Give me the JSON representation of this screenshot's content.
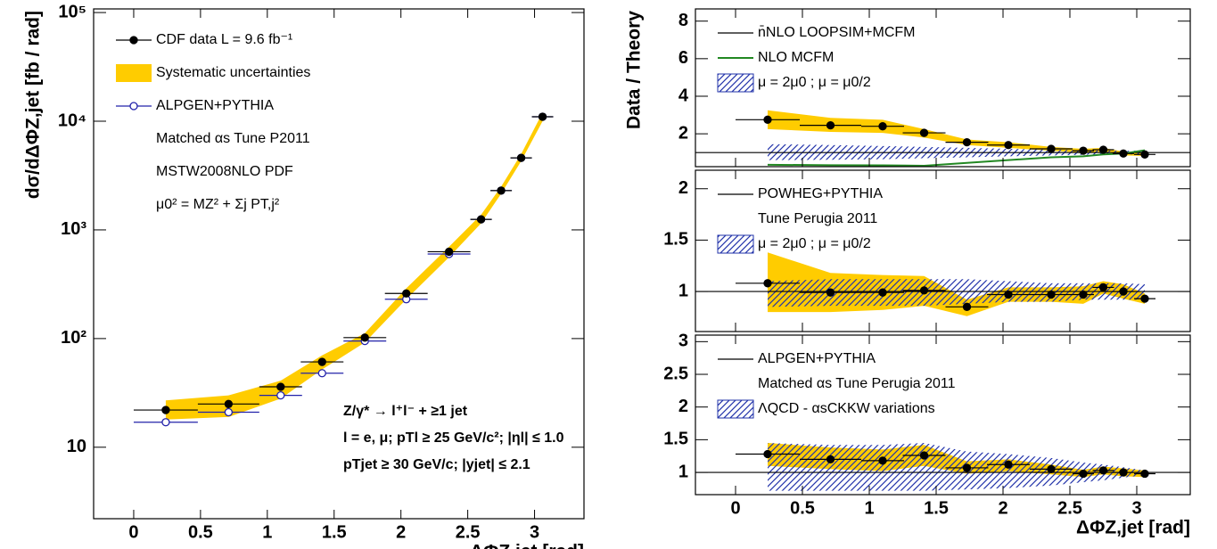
{
  "chart_data": [
    {
      "type": "errorbar",
      "log_y": true,
      "xlabel": "ΔΦZ,jet [rad]",
      "ylabel": "dσ/dΔΦZ,jet [fb / rad]",
      "xlim": [
        -0.3,
        3.37
      ],
      "ylim": [
        2.2,
        108000
      ],
      "xticks": [
        0,
        0.5,
        1,
        1.5,
        2,
        2.5,
        3
      ],
      "yticks": [
        10,
        {
          "value": 100,
          "label": "10²"
        },
        {
          "value": 1000,
          "label": "10³"
        },
        {
          "value": 10000,
          "label": "10⁴"
        },
        {
          "value": 100000,
          "label": "10⁵"
        }
      ],
      "x": [
        0.24,
        0.71,
        1.1,
        1.41,
        1.73,
        2.04,
        2.36,
        2.6,
        2.75,
        2.9,
        3.06
      ],
      "x_err": [
        0.24,
        0.23,
        0.16,
        0.16,
        0.16,
        0.16,
        0.16,
        0.08,
        0.08,
        0.08,
        0.08
      ],
      "series": [
        {
          "name": "CDF data  L =  9.6 fb⁻¹",
          "kind": "points",
          "color": "#000000",
          "values": [
            22,
            25,
            36,
            61,
            102,
            260,
            630,
            1250,
            2300,
            4600,
            11000
          ]
        },
        {
          "name": "Systematic uncertainties",
          "kind": "band",
          "color": "#ffcc00",
          "lower": [
            18,
            19,
            28,
            52,
            92,
            230,
            560,
            1150,
            2150,
            4300,
            10000
          ],
          "upper": [
            27,
            30,
            41,
            70,
            112,
            290,
            700,
            1380,
            2500,
            5000,
            12000
          ]
        },
        {
          "name": "ALPGEN+PYTHIA",
          "kind": "open_points",
          "color": "#2222aa",
          "values": [
            17,
            21,
            30,
            48,
            95,
            230,
            600,
            1250,
            2300,
            4600,
            11000
          ]
        }
      ],
      "notes": [
        "Matched αs Tune P2011",
        "MSTW2008NLO PDF",
        "μ0² = MZ² + Σj PT,j²"
      ],
      "annotations": [
        "Z/γ* → l⁺l⁻ + ≥1 jet",
        "l = e, μ;  pTl ≥ 25 GeV/c²; |ηl| ≤ 1.0",
        "pTjet ≥ 30 GeV/c; |yjet| ≤ 2.1"
      ]
    },
    {
      "type": "ratio",
      "ylabel": "Data / Theory",
      "xlim": [
        -0.3,
        3.4
      ],
      "ylim": [
        0.25,
        8.65
      ],
      "xticks": [
        0,
        0.5,
        1,
        1.5,
        2,
        2.5,
        3
      ],
      "yticks": [
        2,
        4,
        6,
        8
      ],
      "x": [
        0.24,
        0.71,
        1.1,
        1.41,
        1.73,
        2.04,
        2.36,
        2.6,
        2.75,
        2.9,
        3.06
      ],
      "x_err": [
        0.24,
        0.23,
        0.16,
        0.16,
        0.16,
        0.16,
        0.16,
        0.08,
        0.08,
        0.08,
        0.08
      ],
      "series": [
        {
          "name": "n̄NLO LOOPSIM+MCFM",
          "kind": "hline",
          "color": "#000000",
          "y": 1
        },
        {
          "name": "NLO MCFM",
          "kind": "line",
          "color": "#228822",
          "values": [
            0.35,
            0.33,
            0.32,
            0.3,
            0.45,
            0.6,
            0.75,
            0.8,
            0.9,
            0.95,
            1.12
          ]
        },
        {
          "name": "μ = 2μ0 ; μ = μ0/2",
          "kind": "hatch",
          "color": "#2233aa",
          "lower": [
            0.6,
            0.62,
            0.65,
            0.7,
            0.75,
            0.8,
            0.85,
            0.88,
            0.9,
            0.9,
            0.9
          ],
          "upper": [
            1.45,
            1.4,
            1.35,
            1.3,
            1.25,
            1.2,
            1.15,
            1.12,
            1.1,
            1.1,
            1.1
          ]
        },
        {
          "kind": "band",
          "color": "#ffcc00",
          "lower": [
            2.25,
            2.1,
            2.05,
            1.8,
            1.4,
            1.25,
            1.1,
            1.0,
            1.05,
            0.85,
            0.82
          ],
          "upper": [
            3.25,
            2.85,
            2.75,
            2.25,
            1.7,
            1.55,
            1.3,
            1.2,
            1.25,
            1.05,
            0.98
          ]
        },
        {
          "kind": "points",
          "color": "#000000",
          "values": [
            2.75,
            2.45,
            2.4,
            2.05,
            1.55,
            1.4,
            1.2,
            1.1,
            1.15,
            0.95,
            0.9
          ]
        }
      ]
    },
    {
      "type": "ratio",
      "xlim": [
        -0.3,
        3.4
      ],
      "ylim": [
        0.61,
        2.18
      ],
      "xticks": [
        0,
        0.5,
        1,
        1.5,
        2,
        2.5,
        3
      ],
      "yticks": [
        1,
        1.5,
        2
      ],
      "x": [
        0.24,
        0.71,
        1.1,
        1.41,
        1.73,
        2.04,
        2.36,
        2.6,
        2.75,
        2.9,
        3.06
      ],
      "x_err": [
        0.24,
        0.23,
        0.16,
        0.16,
        0.16,
        0.16,
        0.16,
        0.08,
        0.08,
        0.08,
        0.08
      ],
      "series": [
        {
          "name": "POWHEG+PYTHIA",
          "kind": "hline",
          "color": "#000000",
          "y": 1
        },
        {
          "name": "μ = 2μ0 ; μ = μ0/2",
          "kind": "hatch",
          "color": "#2233aa",
          "lower": [
            0.85,
            0.86,
            0.86,
            0.86,
            0.88,
            0.9,
            0.9,
            0.92,
            0.92,
            0.92,
            0.92
          ],
          "upper": [
            1.1,
            1.12,
            1.12,
            1.12,
            1.12,
            1.1,
            1.08,
            1.08,
            1.08,
            1.08,
            1.07
          ]
        },
        {
          "kind": "band",
          "color": "#ffcc00",
          "lower": [
            0.8,
            0.8,
            0.82,
            0.86,
            0.76,
            0.9,
            0.9,
            0.88,
            0.98,
            0.93,
            0.88
          ],
          "upper": [
            1.38,
            1.18,
            1.16,
            1.15,
            0.92,
            1.04,
            1.04,
            1.05,
            1.1,
            1.07,
            0.98
          ]
        },
        {
          "kind": "points",
          "color": "#000000",
          "values": [
            1.08,
            0.99,
            0.99,
            1.01,
            0.85,
            0.97,
            0.97,
            0.97,
            1.04,
            1.0,
            0.93
          ]
        }
      ],
      "notes": [
        "Tune Perugia 2011"
      ]
    },
    {
      "type": "ratio",
      "xlabel": "ΔΦZ,jet [rad]",
      "xlim": [
        -0.3,
        3.4
      ],
      "ylim": [
        0.66,
        3.1
      ],
      "xticks": [
        0,
        0.5,
        1,
        1.5,
        2,
        2.5,
        3
      ],
      "yticks": [
        1,
        1.5,
        2,
        2.5,
        3
      ],
      "x": [
        0.24,
        0.71,
        1.1,
        1.41,
        1.73,
        2.04,
        2.36,
        2.6,
        2.75,
        2.9,
        3.06
      ],
      "x_err": [
        0.24,
        0.23,
        0.16,
        0.16,
        0.16,
        0.16,
        0.16,
        0.08,
        0.08,
        0.08,
        0.08
      ],
      "series": [
        {
          "name": "ALPGEN+PYTHIA",
          "kind": "hline",
          "color": "#000000",
          "y": 1
        },
        {
          "name": "ΛQCD - αsCKKW variations",
          "kind": "hatch",
          "color": "#2233aa",
          "lower": [
            0.72,
            0.72,
            0.72,
            0.72,
            0.74,
            0.76,
            0.8,
            0.85,
            0.88,
            0.92,
            0.96
          ],
          "upper": [
            1.45,
            1.42,
            1.42,
            1.45,
            1.32,
            1.28,
            1.22,
            1.15,
            1.12,
            1.08,
            1.03
          ]
        },
        {
          "kind": "band",
          "color": "#ffcc00",
          "lower": [
            1.1,
            1.05,
            1.02,
            1.1,
            0.98,
            1.02,
            0.97,
            0.93,
            0.97,
            0.94,
            0.93
          ],
          "upper": [
            1.45,
            1.38,
            1.35,
            1.42,
            1.17,
            1.2,
            1.12,
            1.04,
            1.09,
            1.06,
            1.03
          ]
        },
        {
          "kind": "points",
          "color": "#000000",
          "values": [
            1.28,
            1.2,
            1.18,
            1.26,
            1.07,
            1.12,
            1.05,
            0.98,
            1.03,
            1.0,
            0.98
          ]
        }
      ],
      "notes": [
        "Matched αs Tune Perugia 2011"
      ]
    }
  ]
}
